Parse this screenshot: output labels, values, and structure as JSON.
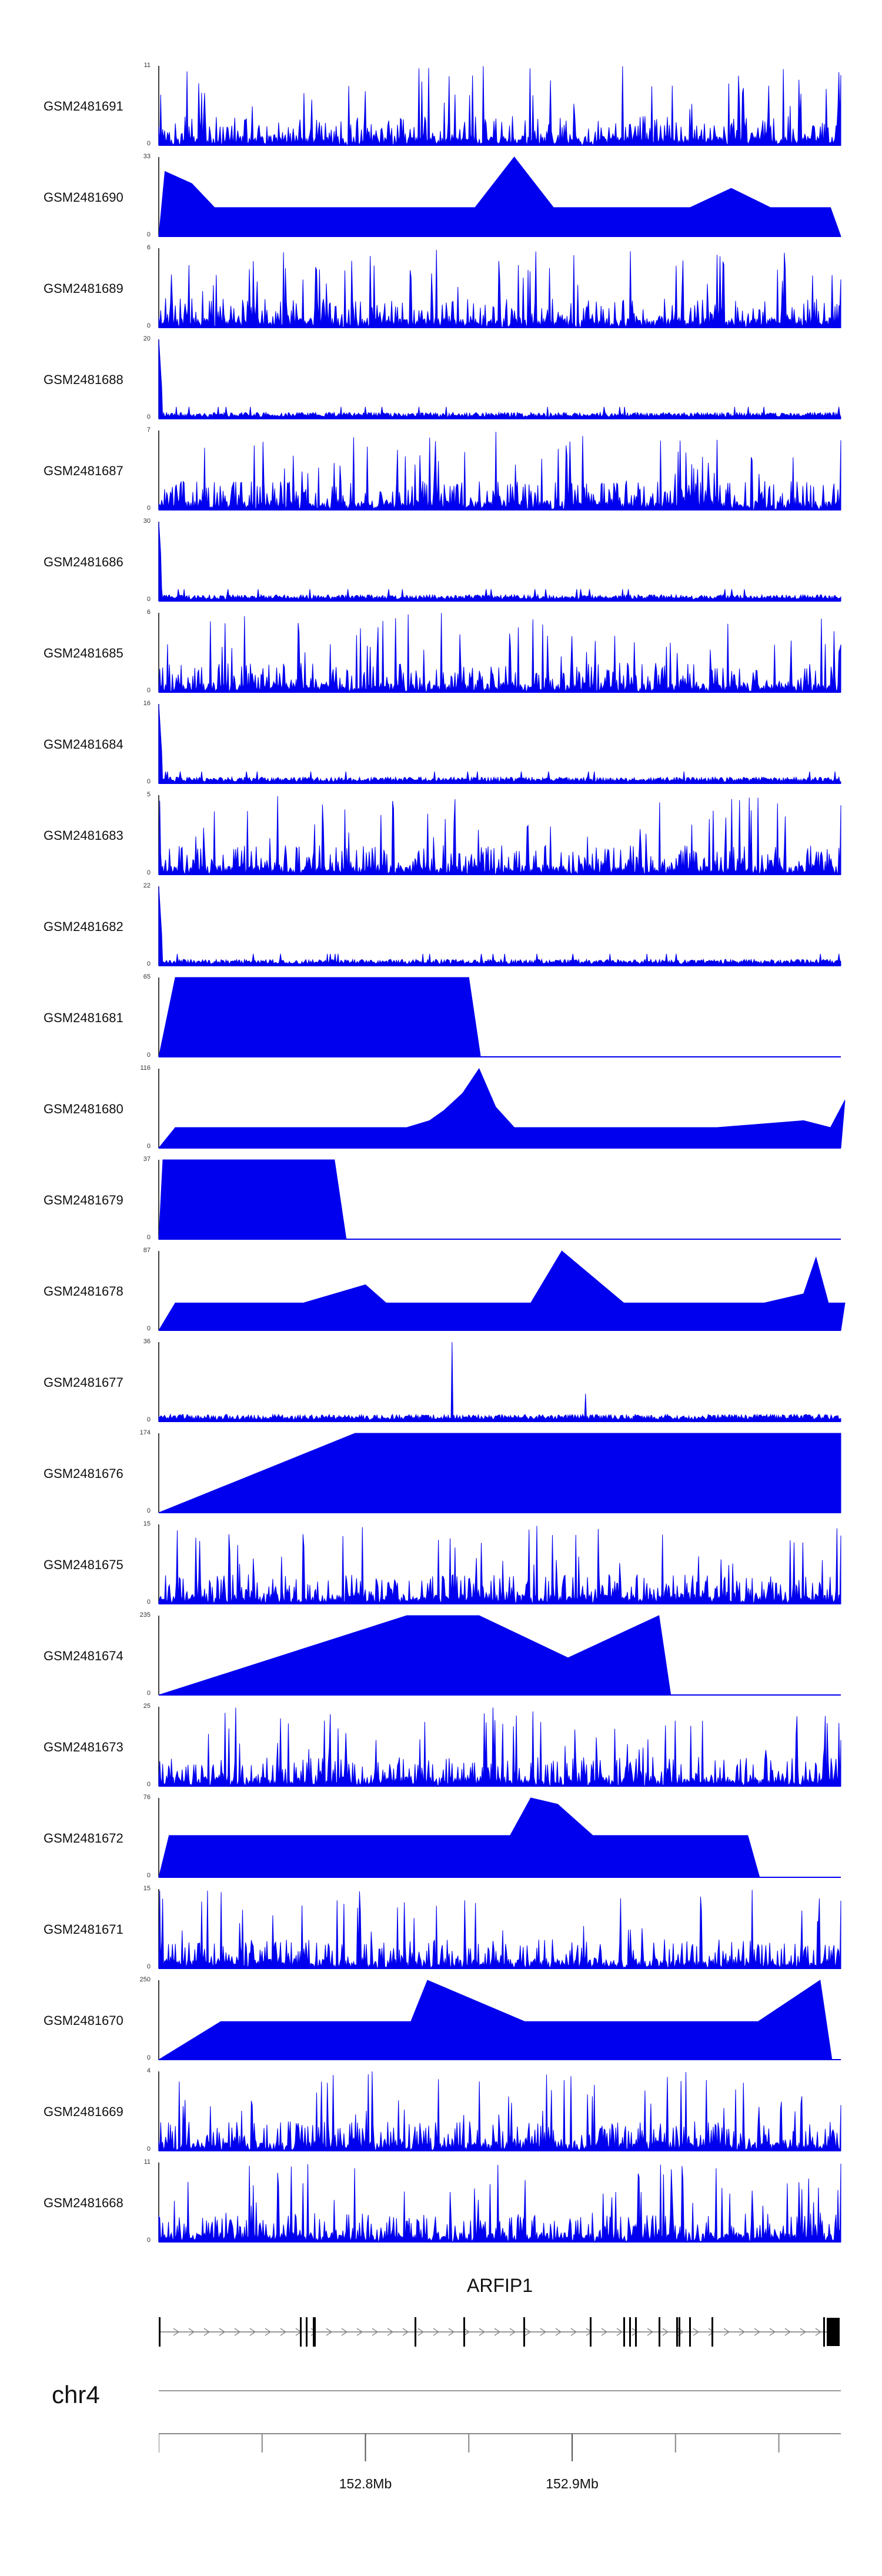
{
  "chart_data": {
    "type": "area",
    "chromosome": "chr4",
    "gene": "ARFIP1",
    "region_mb": [
      152.7,
      153.03
    ],
    "axis_tick_labels": [
      {
        "label": "152.8Mb",
        "position_mb": 152.8
      },
      {
        "label": "152.9Mb",
        "position_mb": 152.9
      }
    ],
    "fill_color": "#0000ee",
    "tracks": [
      {
        "name": "GSM2481691",
        "ymax": 11,
        "ymin": 0,
        "style": "dense"
      },
      {
        "name": "GSM2481690",
        "ymax": 33,
        "ymin": 0,
        "style": "sparse",
        "peaks": [
          [
            152.703,
            27
          ],
          [
            152.716,
            22
          ],
          [
            152.727,
            12
          ],
          [
            152.74,
            12
          ],
          [
            152.752,
            12
          ],
          [
            152.763,
            12
          ],
          [
            152.774,
            12
          ],
          [
            152.786,
            12
          ],
          [
            152.797,
            12
          ],
          [
            152.815,
            12
          ],
          [
            152.835,
            12
          ],
          [
            152.853,
            12
          ],
          [
            152.872,
            33
          ],
          [
            152.891,
            12
          ],
          [
            152.916,
            12
          ],
          [
            152.934,
            12
          ],
          [
            152.957,
            12
          ],
          [
            152.977,
            20
          ],
          [
            152.996,
            12
          ],
          [
            153.011,
            12
          ],
          [
            153.025,
            12
          ]
        ]
      },
      {
        "name": "GSM2481689",
        "ymax": 6,
        "ymin": 0,
        "style": "dense"
      },
      {
        "name": "GSM2481688",
        "ymax": 20,
        "ymin": 0,
        "style": "dense-spike"
      },
      {
        "name": "GSM2481687",
        "ymax": 7,
        "ymin": 0,
        "style": "dense"
      },
      {
        "name": "GSM2481686",
        "ymax": 30,
        "ymin": 0,
        "style": "dense-spike"
      },
      {
        "name": "GSM2481685",
        "ymax": 6,
        "ymin": 0,
        "style": "dense"
      },
      {
        "name": "GSM2481684",
        "ymax": 16,
        "ymin": 0,
        "style": "dense-spike"
      },
      {
        "name": "GSM2481683",
        "ymax": 5,
        "ymin": 0,
        "style": "dense"
      },
      {
        "name": "GSM2481682",
        "ymax": 22,
        "ymin": 0,
        "style": "dense-spike"
      },
      {
        "name": "GSM2481681",
        "ymax": 65,
        "ymin": 0,
        "style": "sparse",
        "peaks": [
          [
            152.708,
            65
          ],
          [
            152.735,
            65
          ],
          [
            152.783,
            65
          ],
          [
            152.85,
            65
          ]
        ]
      },
      {
        "name": "GSM2481680",
        "ymax": 116,
        "ymin": 0,
        "style": "sparse",
        "peaks": [
          [
            152.708,
            30
          ],
          [
            152.72,
            30
          ],
          [
            152.735,
            30
          ],
          [
            152.748,
            30
          ],
          [
            152.76,
            30
          ],
          [
            152.77,
            30
          ],
          [
            152.786,
            30
          ],
          [
            152.803,
            30
          ],
          [
            152.82,
            30
          ],
          [
            152.831,
            40
          ],
          [
            152.838,
            55
          ],
          [
            152.847,
            80
          ],
          [
            152.855,
            116
          ],
          [
            152.863,
            60
          ],
          [
            152.872,
            30
          ],
          [
            152.89,
            30
          ],
          [
            152.92,
            30
          ],
          [
            152.948,
            30
          ],
          [
            152.97,
            30
          ],
          [
            153.012,
            40
          ],
          [
            153.025,
            30
          ],
          [
            153.032,
            70
          ]
        ]
      },
      {
        "name": "GSM2481679",
        "ymax": 37,
        "ymin": 0,
        "style": "sparse",
        "peaks": [
          [
            152.702,
            37
          ],
          [
            152.785,
            37
          ]
        ]
      },
      {
        "name": "GSM2481678",
        "ymax": 87,
        "ymin": 0,
        "style": "sparse",
        "peaks": [
          [
            152.708,
            30
          ],
          [
            152.77,
            30
          ],
          [
            152.8,
            50
          ],
          [
            152.81,
            30
          ],
          [
            152.86,
            30
          ],
          [
            152.88,
            30
          ],
          [
            152.895,
            87
          ],
          [
            152.925,
            30
          ],
          [
            152.955,
            30
          ],
          [
            152.975,
            30
          ],
          [
            152.993,
            30
          ],
          [
            153.012,
            40
          ],
          [
            153.018,
            80
          ],
          [
            153.024,
            30
          ],
          [
            153.032,
            30
          ]
        ]
      },
      {
        "name": "GSM2481677",
        "ymax": 36,
        "ymin": 0,
        "style": "dense-spike2"
      },
      {
        "name": "GSM2481676",
        "ymax": 174,
        "ymin": 0,
        "style": "sparse",
        "peaks": [
          [
            152.795,
            174
          ],
          [
            152.873,
            174
          ],
          [
            153.008,
            174
          ],
          [
            153.03,
            174
          ]
        ]
      },
      {
        "name": "GSM2481675",
        "ymax": 15,
        "ymin": 0,
        "style": "dense"
      },
      {
        "name": "GSM2481674",
        "ymax": 235,
        "ymin": 0,
        "style": "sparse",
        "peaks": [
          [
            152.82,
            235
          ],
          [
            152.855,
            235
          ],
          [
            152.898,
            110
          ],
          [
            152.942,
            235
          ]
        ]
      },
      {
        "name": "GSM2481673",
        "ymax": 25,
        "ymin": 0,
        "style": "dense"
      },
      {
        "name": "GSM2481672",
        "ymax": 76,
        "ymin": 0,
        "style": "sparse",
        "peaks": [
          [
            152.705,
            40
          ],
          [
            152.715,
            40
          ],
          [
            152.755,
            40
          ],
          [
            152.79,
            40
          ],
          [
            152.805,
            40
          ],
          [
            152.82,
            40
          ],
          [
            152.84,
            40
          ],
          [
            152.855,
            40
          ],
          [
            152.87,
            40
          ],
          [
            152.88,
            76
          ],
          [
            152.893,
            70
          ],
          [
            152.91,
            40
          ],
          [
            152.945,
            40
          ],
          [
            152.96,
            40
          ],
          [
            152.97,
            40
          ],
          [
            152.985,
            40
          ]
        ]
      },
      {
        "name": "GSM2481671",
        "ymax": 15,
        "ymin": 0,
        "style": "dense"
      },
      {
        "name": "GSM2481670",
        "ymax": 250,
        "ymin": 0,
        "style": "sparse",
        "peaks": [
          [
            152.73,
            120
          ],
          [
            152.745,
            120
          ],
          [
            152.79,
            120
          ],
          [
            152.822,
            120
          ],
          [
            152.83,
            250
          ],
          [
            152.877,
            120
          ],
          [
            152.9,
            120
          ],
          [
            152.97,
            120
          ],
          [
            152.99,
            120
          ],
          [
            153.02,
            250
          ]
        ]
      },
      {
        "name": "GSM2481669",
        "ymax": 4,
        "ymin": 0,
        "style": "dense"
      },
      {
        "name": "GSM2481668",
        "ymax": 11,
        "ymin": 0,
        "style": "dense"
      }
    ]
  }
}
